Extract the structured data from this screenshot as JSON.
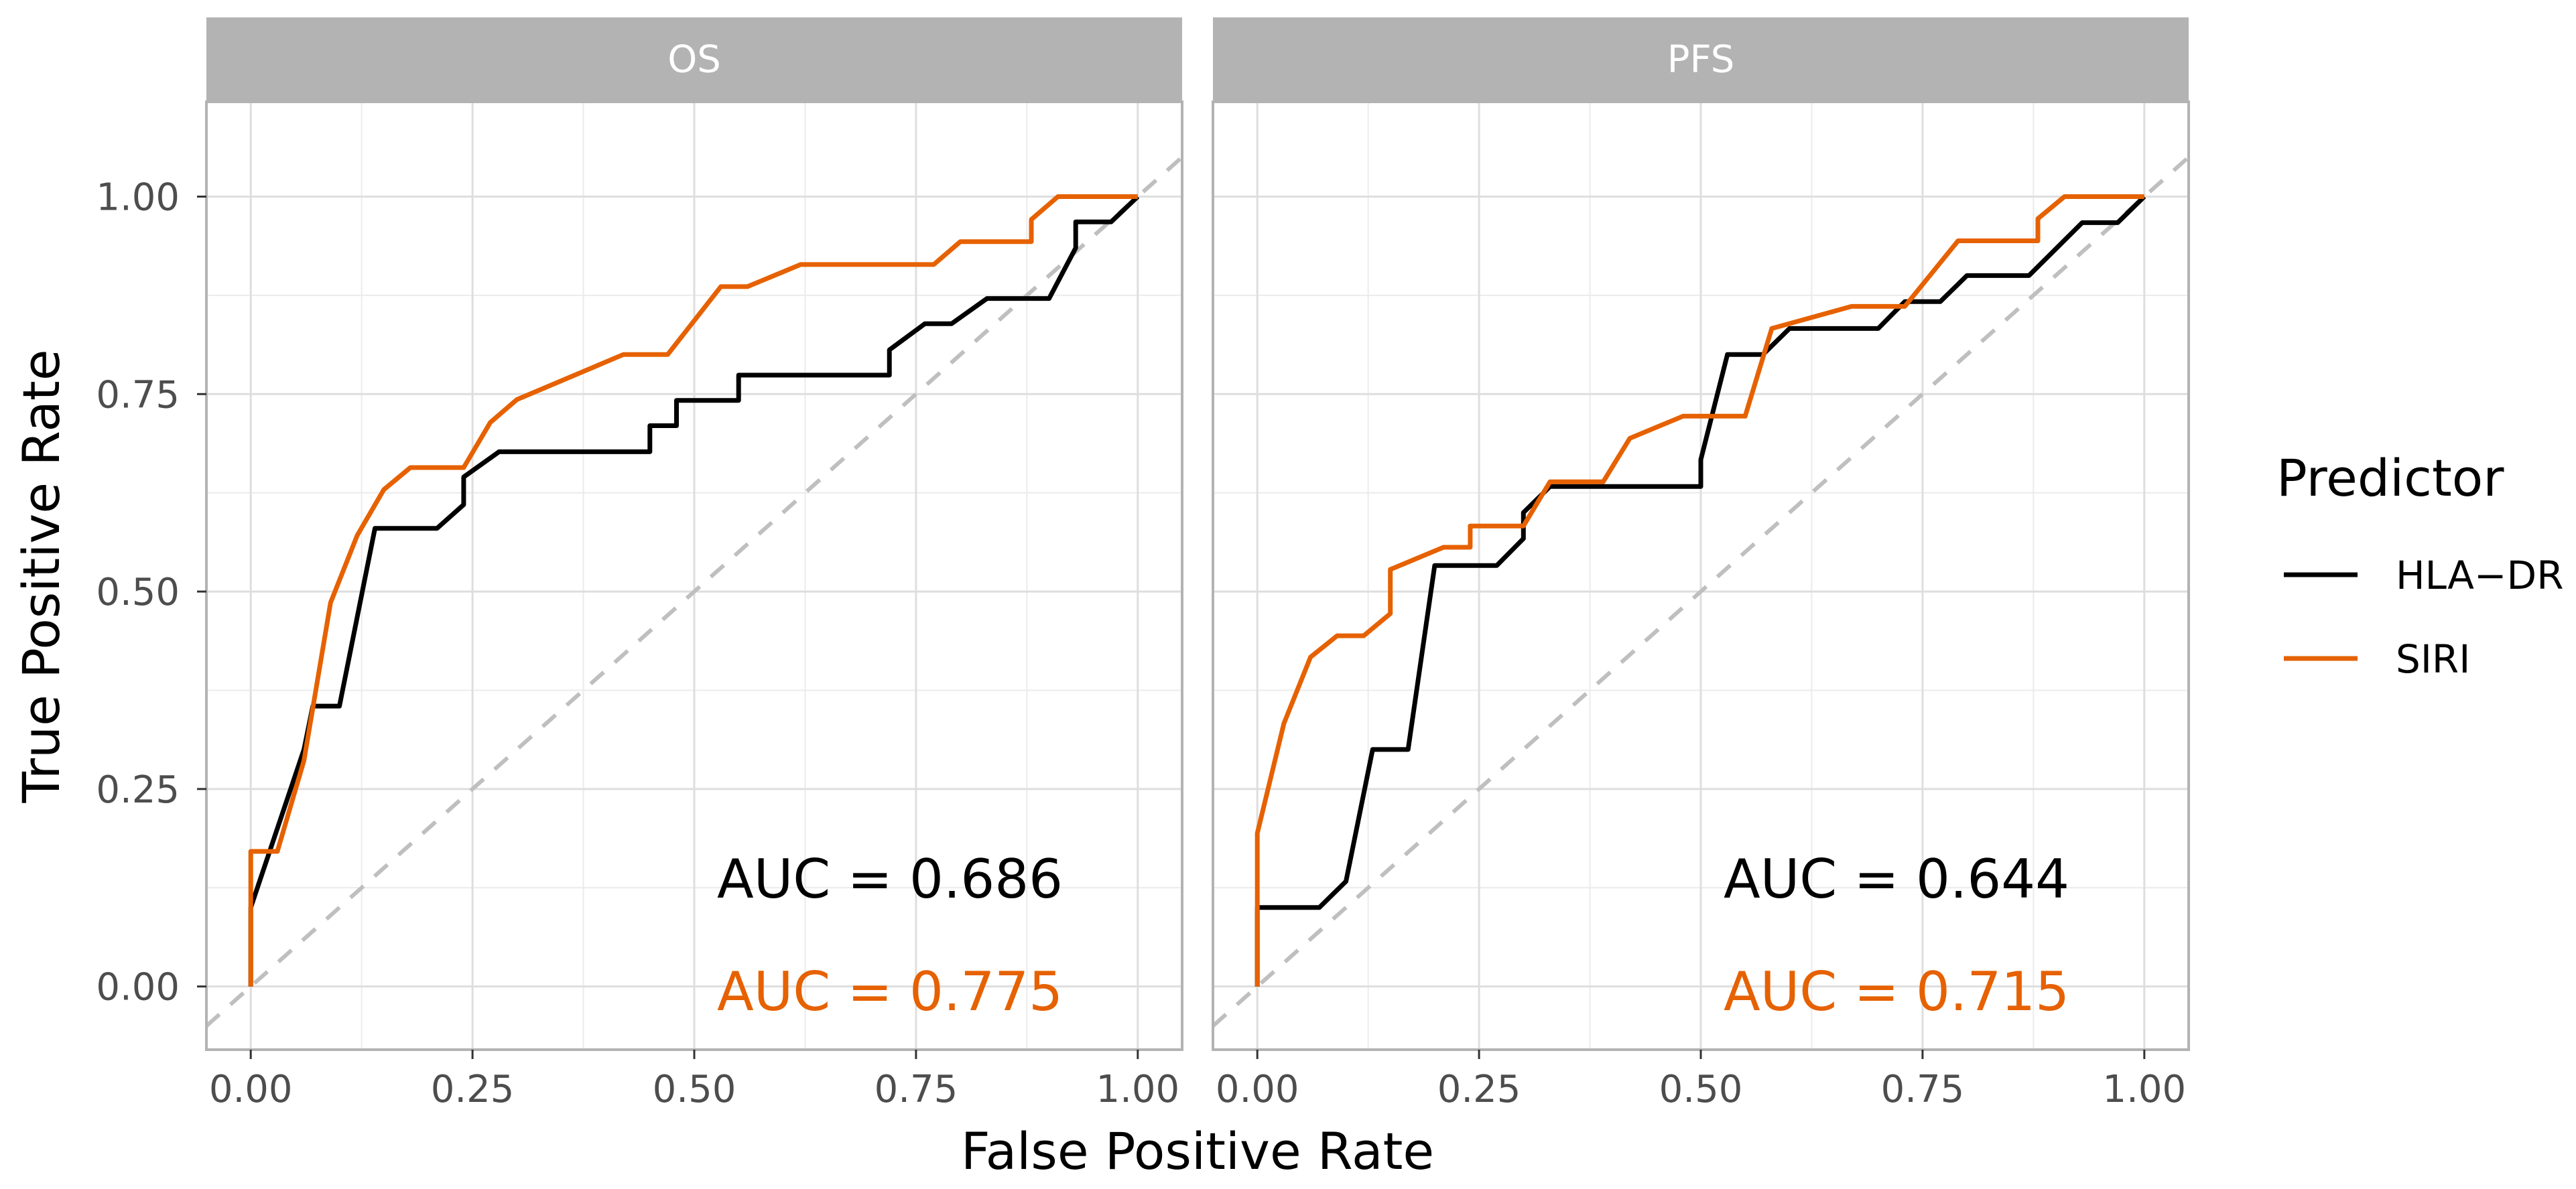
{
  "chart_data": {
    "type": "line",
    "xlabel": "False Positive Rate",
    "ylabel": "True Positive Rate",
    "xlim": [
      -0.05,
      1.05
    ],
    "ylim": [
      -0.08,
      1.12
    ],
    "x_ticks": [
      0,
      0.25,
      0.5,
      0.75,
      1
    ],
    "x_tick_labels": [
      "0.00",
      "0.25",
      "0.50",
      "0.75",
      "1.00"
    ],
    "y_ticks": [
      0,
      0.25,
      0.5,
      0.75,
      1
    ],
    "y_tick_labels": [
      "0.00",
      "0.25",
      "0.50",
      "0.75",
      "1.00"
    ],
    "grid": true,
    "reference_line": {
      "style": "dashed",
      "color": "#bfbfbf",
      "x": [
        -0.05,
        1.05
      ],
      "y": [
        -0.05,
        1.05
      ]
    },
    "legend": {
      "title": "Predictor",
      "position": "right",
      "entries": [
        {
          "name": "HLA−DR",
          "color": "#000000"
        },
        {
          "name": "SIRI",
          "color": "#e66100"
        }
      ]
    },
    "panels": [
      {
        "strip": "OS",
        "annotations": [
          {
            "text": "AUC = 0.686",
            "color": "#000000"
          },
          {
            "text": "AUC = 0.775",
            "color": "#e66100"
          }
        ],
        "series": [
          {
            "name": "HLA−DR",
            "color": "#000000",
            "x": [
              0,
              0,
              0.03,
              0.06,
              0.07,
              0.1,
              0.14,
              0.21,
              0.24,
              0.24,
              0.28,
              0.45,
              0.45,
              0.48,
              0.48,
              0.55,
              0.55,
              0.72,
              0.72,
              0.76,
              0.79,
              0.83,
              0.86,
              0.9,
              0.93,
              0.93,
              0.97,
              1
            ],
            "y": [
              0,
              0.1,
              0.2,
              0.3,
              0.355,
              0.355,
              0.58,
              0.58,
              0.61,
              0.645,
              0.677,
              0.677,
              0.71,
              0.71,
              0.742,
              0.742,
              0.774,
              0.774,
              0.806,
              0.839,
              0.839,
              0.871,
              0.871,
              0.871,
              0.935,
              0.968,
              0.968,
              1
            ]
          },
          {
            "name": "SIRI",
            "color": "#e66100",
            "x": [
              0,
              0,
              0.03,
              0.06,
              0.09,
              0.12,
              0.15,
              0.18,
              0.24,
              0.27,
              0.3,
              0.42,
              0.47,
              0.53,
              0.56,
              0.62,
              0.77,
              0.8,
              0.88,
              0.88,
              0.91,
              1
            ],
            "y": [
              0,
              0.171,
              0.171,
              0.286,
              0.486,
              0.571,
              0.629,
              0.657,
              0.657,
              0.714,
              0.743,
              0.8,
              0.8,
              0.886,
              0.886,
              0.914,
              0.914,
              0.943,
              0.943,
              0.971,
              1,
              1
            ]
          }
        ]
      },
      {
        "strip": "PFS",
        "annotations": [
          {
            "text": "AUC = 0.644",
            "color": "#000000"
          },
          {
            "text": "AUC = 0.715",
            "color": "#e66100"
          }
        ],
        "series": [
          {
            "name": "HLA−DR",
            "color": "#000000",
            "x": [
              0,
              0,
              0.07,
              0.1,
              0.13,
              0.17,
              0.2,
              0.27,
              0.3,
              0.3,
              0.33,
              0.5,
              0.5,
              0.53,
              0.57,
              0.6,
              0.7,
              0.73,
              0.77,
              0.8,
              0.87,
              0.93,
              0.97,
              1
            ],
            "y": [
              0,
              0.1,
              0.1,
              0.133,
              0.3,
              0.3,
              0.533,
              0.533,
              0.567,
              0.6,
              0.633,
              0.633,
              0.667,
              0.8,
              0.8,
              0.833,
              0.833,
              0.867,
              0.867,
              0.9,
              0.9,
              0.967,
              0.967,
              1
            ]
          },
          {
            "name": "SIRI",
            "color": "#e66100",
            "x": [
              0,
              0,
              0.03,
              0.06,
              0.09,
              0.12,
              0.15,
              0.15,
              0.21,
              0.24,
              0.24,
              0.3,
              0.33,
              0.39,
              0.42,
              0.48,
              0.55,
              0.58,
              0.67,
              0.73,
              0.79,
              0.88,
              0.88,
              0.91,
              1
            ],
            "y": [
              0,
              0.194,
              0.333,
              0.417,
              0.444,
              0.444,
              0.472,
              0.528,
              0.556,
              0.556,
              0.583,
              0.583,
              0.639,
              0.639,
              0.694,
              0.722,
              0.722,
              0.833,
              0.861,
              0.861,
              0.944,
              0.944,
              0.972,
              1,
              1
            ]
          }
        ]
      }
    ]
  }
}
